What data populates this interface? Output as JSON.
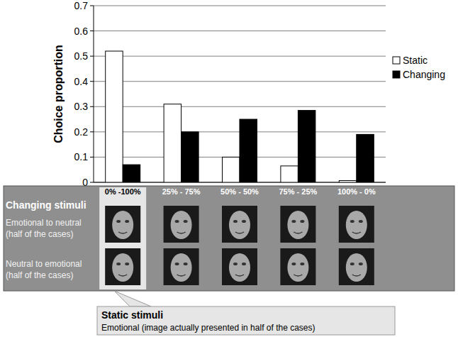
{
  "chart_data": {
    "type": "bar",
    "y_label": "Choice proportion",
    "categories": [
      "0% -100%",
      "25% - 75%",
      "50% - 50%",
      "75% - 25%",
      "100% - 0%"
    ],
    "series": [
      {
        "name": "Static",
        "color": "#ffffff",
        "values": [
          0.52,
          0.31,
          0.1,
          0.065,
          0.007
        ]
      },
      {
        "name": "Changing",
        "color": "#000000",
        "values": [
          0.07,
          0.2,
          0.25,
          0.285,
          0.19
        ]
      }
    ],
    "ylim": [
      0,
      0.7
    ],
    "yticks": [
      0,
      0.1,
      0.2,
      0.3,
      0.4,
      0.5,
      0.6,
      0.7
    ],
    "grid": true,
    "legend": "right",
    "annotations": [
      "Changing stimuli",
      "Emotional to neutral",
      "(half of the cases)",
      "Neutral to emotional",
      "(half of the cases)",
      "Static stimuli",
      "Emotional (image actually presented in half of the cases)"
    ]
  }
}
